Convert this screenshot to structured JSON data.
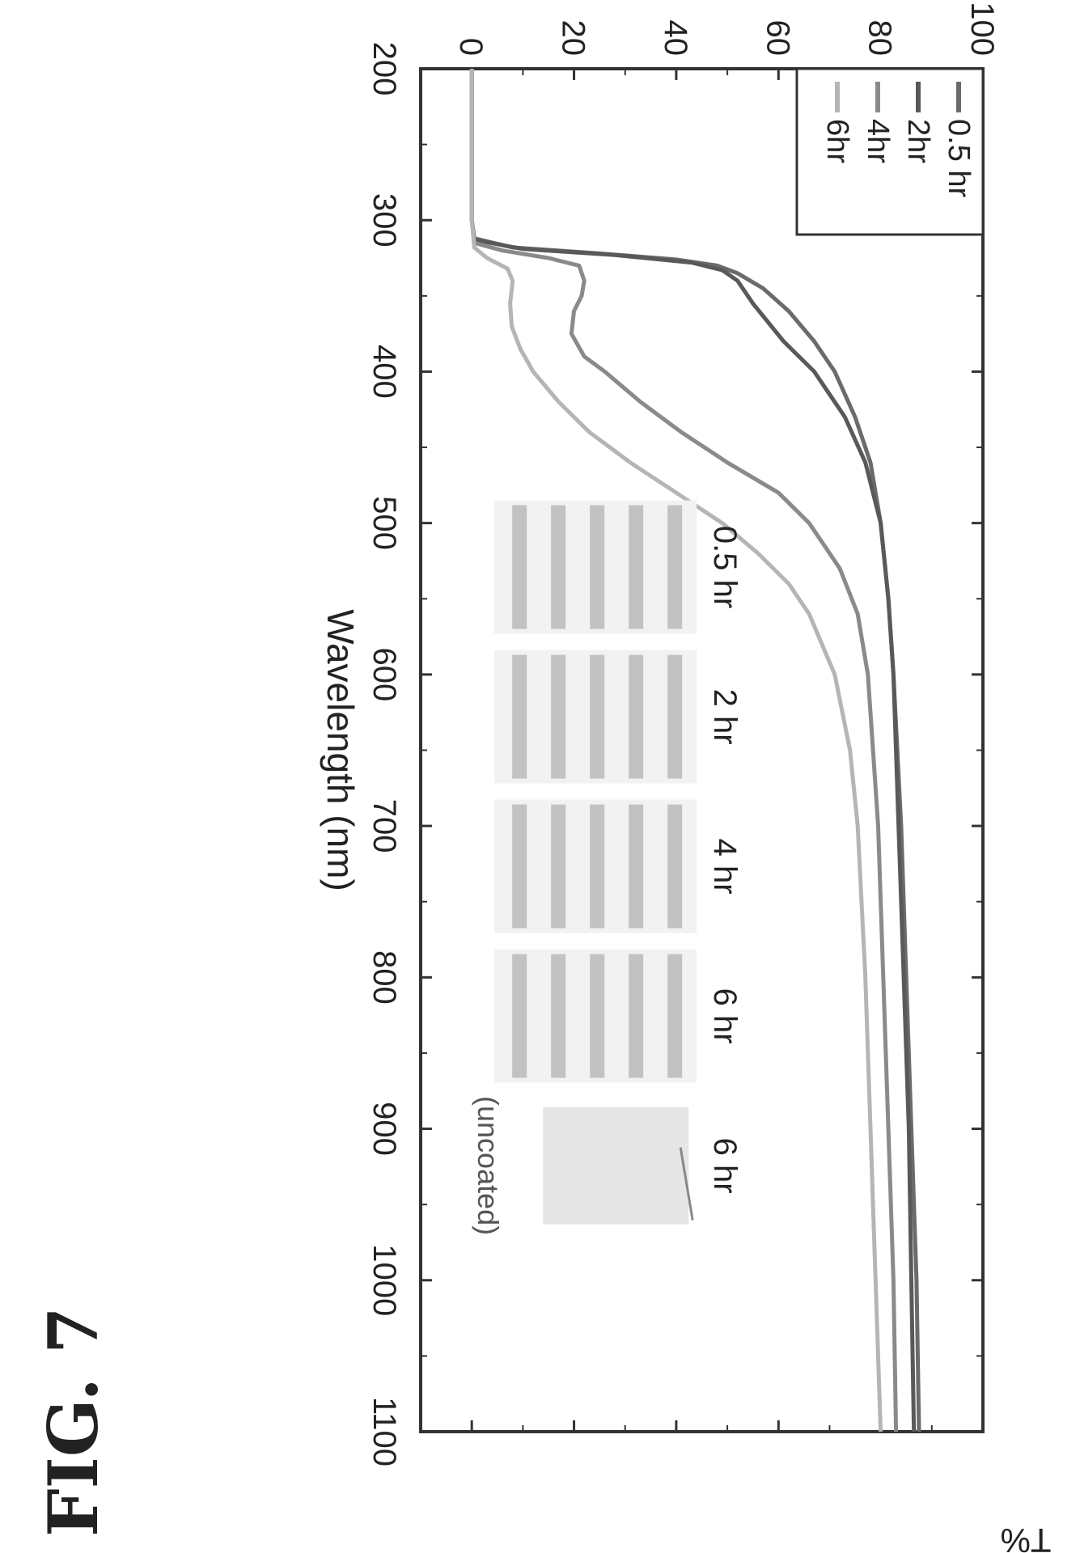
{
  "figure": {
    "label": "FIG. 7"
  },
  "chart_data": {
    "type": "line",
    "title": "",
    "xlabel": "Wavelength (nm)",
    "ylabel": "T%",
    "xlim": [
      200,
      1100
    ],
    "ylim": [
      -10,
      100
    ],
    "x_ticks": [
      200,
      300,
      400,
      500,
      600,
      700,
      800,
      900,
      1000,
      1100
    ],
    "y_ticks": [
      0,
      20,
      40,
      60,
      80,
      100
    ],
    "grid": false,
    "legend_position": "top-left",
    "series": [
      {
        "name": "0.5 hr",
        "color": "#6b6b6b",
        "points": [
          [
            200,
            0
          ],
          [
            300,
            0
          ],
          [
            312,
            0.5
          ],
          [
            318,
            8
          ],
          [
            322,
            25
          ],
          [
            326,
            40
          ],
          [
            330,
            48
          ],
          [
            335,
            52
          ],
          [
            345,
            57
          ],
          [
            360,
            62
          ],
          [
            380,
            67
          ],
          [
            400,
            71
          ],
          [
            430,
            75
          ],
          [
            460,
            78
          ],
          [
            500,
            80
          ],
          [
            550,
            81.5
          ],
          [
            600,
            82.5
          ],
          [
            700,
            84
          ],
          [
            800,
            85
          ],
          [
            900,
            86
          ],
          [
            1000,
            87
          ],
          [
            1100,
            87.5
          ]
        ]
      },
      {
        "name": "2hr",
        "color": "#595959",
        "points": [
          [
            200,
            0
          ],
          [
            300,
            0
          ],
          [
            313,
            0.5
          ],
          [
            319,
            10
          ],
          [
            323,
            28
          ],
          [
            328,
            43
          ],
          [
            333,
            49
          ],
          [
            340,
            52
          ],
          [
            355,
            55
          ],
          [
            380,
            61
          ],
          [
            400,
            67
          ],
          [
            430,
            73
          ],
          [
            460,
            77
          ],
          [
            500,
            80
          ],
          [
            550,
            81.5
          ],
          [
            600,
            82.5
          ],
          [
            700,
            83.5
          ],
          [
            800,
            84.5
          ],
          [
            900,
            85.5
          ],
          [
            1000,
            86
          ],
          [
            1100,
            86.5
          ]
        ]
      },
      {
        "name": "4hr",
        "color": "#8a8a8a",
        "points": [
          [
            200,
            0
          ],
          [
            300,
            0
          ],
          [
            315,
            0.5
          ],
          [
            320,
            6
          ],
          [
            325,
            15
          ],
          [
            330,
            21
          ],
          [
            340,
            22
          ],
          [
            350,
            21.5
          ],
          [
            360,
            20
          ],
          [
            375,
            19.5
          ],
          [
            390,
            22
          ],
          [
            400,
            26
          ],
          [
            420,
            33
          ],
          [
            440,
            41
          ],
          [
            460,
            50
          ],
          [
            480,
            60
          ],
          [
            500,
            66
          ],
          [
            530,
            72
          ],
          [
            560,
            75.5
          ],
          [
            600,
            77.5
          ],
          [
            700,
            79.5
          ],
          [
            800,
            80.5
          ],
          [
            900,
            81.5
          ],
          [
            1000,
            82.5
          ],
          [
            1100,
            83
          ]
        ]
      },
      {
        "name": "6hr",
        "color": "#b5b5b5",
        "points": [
          [
            200,
            0
          ],
          [
            300,
            0
          ],
          [
            318,
            0.5
          ],
          [
            325,
            3
          ],
          [
            332,
            7
          ],
          [
            340,
            8
          ],
          [
            355,
            7.5
          ],
          [
            370,
            7.8
          ],
          [
            385,
            9.5
          ],
          [
            400,
            12
          ],
          [
            420,
            17
          ],
          [
            440,
            23
          ],
          [
            460,
            31
          ],
          [
            480,
            40
          ],
          [
            500,
            49
          ],
          [
            520,
            56
          ],
          [
            540,
            62
          ],
          [
            560,
            66
          ],
          [
            600,
            71
          ],
          [
            650,
            74
          ],
          [
            700,
            75.5
          ],
          [
            800,
            77
          ],
          [
            900,
            78
          ],
          [
            1000,
            79
          ],
          [
            1100,
            80
          ]
        ]
      }
    ],
    "inset_labels": [
      "0.5 hr",
      "2 hr",
      "4 hr",
      "6 hr",
      "6 hr"
    ],
    "inset_caption": "(uncoated)"
  }
}
